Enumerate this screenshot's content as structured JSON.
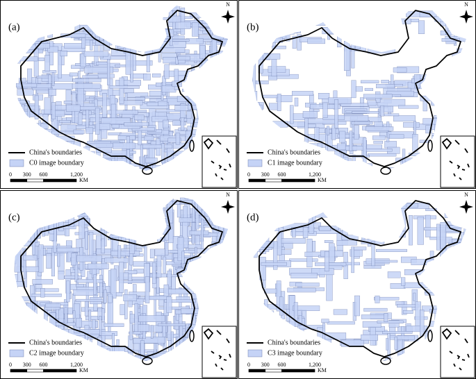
{
  "panels": [
    {
      "label": "(a)",
      "legend": {
        "boundary": "China's boundaries",
        "images": "C0 image boundary"
      }
    },
    {
      "label": "(b)",
      "legend": {
        "boundary": "China's boundaries",
        "images": "C1 image boundary"
      }
    },
    {
      "label": "(c)",
      "legend": {
        "boundary": "China's boundaries",
        "images": "C2 image boundary"
      }
    },
    {
      "label": "(d)",
      "legend": {
        "boundary": "China's boundaries",
        "images": "C3 image boundary"
      }
    }
  ],
  "scale": {
    "ticks": [
      0,
      300,
      600,
      {
        "value": 1200,
        "label": "1,200"
      }
    ],
    "unit": "KM"
  },
  "north": "N"
}
